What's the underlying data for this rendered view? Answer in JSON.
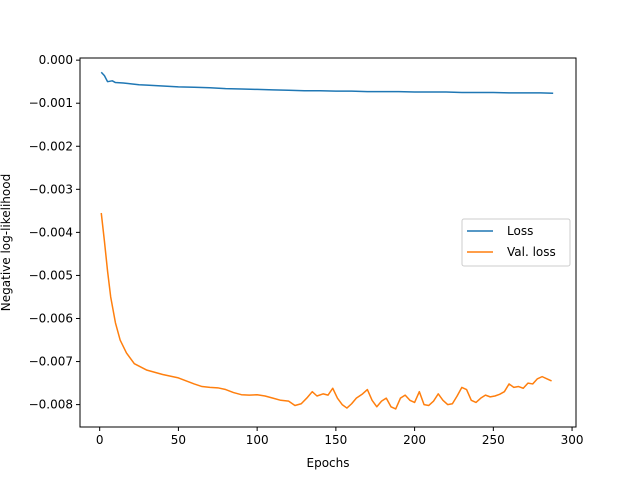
{
  "chart_data": {
    "type": "line",
    "title": "",
    "xlabel": "Epochs",
    "ylabel": "Negative log-likelihood",
    "xlim": [
      -12.5,
      302.5
    ],
    "ylim": [
      -0.00852,
      5e-05
    ],
    "xticks": [
      {
        "value": 0,
        "label": "0"
      },
      {
        "value": 50,
        "label": "50"
      },
      {
        "value": 100,
        "label": "100"
      },
      {
        "value": 150,
        "label": "150"
      },
      {
        "value": 200,
        "label": "200"
      },
      {
        "value": 250,
        "label": "250"
      },
      {
        "value": 300,
        "label": "300"
      }
    ],
    "yticks": [
      {
        "value": 0.0,
        "label": "0.000"
      },
      {
        "value": -0.001,
        "label": "−0.001"
      },
      {
        "value": -0.002,
        "label": "−0.002"
      },
      {
        "value": -0.003,
        "label": "−0.003"
      },
      {
        "value": -0.004,
        "label": "−0.004"
      },
      {
        "value": -0.005,
        "label": "−0.005"
      },
      {
        "value": -0.006,
        "label": "−0.006"
      },
      {
        "value": -0.007,
        "label": "−0.007"
      },
      {
        "value": -0.008,
        "label": "−0.008"
      }
    ],
    "grid": false,
    "legend": "center-right",
    "series": [
      {
        "name": "Loss",
        "color": "#1f77b4",
        "points": [
          [
            1,
            -0.00028
          ],
          [
            3,
            -0.00036
          ],
          [
            5,
            -0.0005
          ],
          [
            8,
            -0.00048
          ],
          [
            10,
            -0.00052
          ],
          [
            15,
            -0.00053
          ],
          [
            20,
            -0.00055
          ],
          [
            25,
            -0.00057
          ],
          [
            30,
            -0.00058
          ],
          [
            40,
            -0.0006
          ],
          [
            50,
            -0.00062
          ],
          [
            60,
            -0.00063
          ],
          [
            70,
            -0.00064
          ],
          [
            80,
            -0.00066
          ],
          [
            90,
            -0.00067
          ],
          [
            100,
            -0.00068
          ],
          [
            110,
            -0.00069
          ],
          [
            120,
            -0.0007
          ],
          [
            130,
            -0.00071
          ],
          [
            140,
            -0.00071
          ],
          [
            150,
            -0.00072
          ],
          [
            160,
            -0.00072
          ],
          [
            170,
            -0.00073
          ],
          [
            180,
            -0.00073
          ],
          [
            190,
            -0.00073
          ],
          [
            200,
            -0.00074
          ],
          [
            210,
            -0.00074
          ],
          [
            220,
            -0.00074
          ],
          [
            230,
            -0.00075
          ],
          [
            240,
            -0.00075
          ],
          [
            250,
            -0.00075
          ],
          [
            260,
            -0.00076
          ],
          [
            270,
            -0.00076
          ],
          [
            280,
            -0.00076
          ],
          [
            288,
            -0.00077
          ]
        ]
      },
      {
        "name": "Val. loss",
        "color": "#ff7f0e",
        "points": [
          [
            1,
            -0.00355
          ],
          [
            3,
            -0.0042
          ],
          [
            5,
            -0.0049
          ],
          [
            7,
            -0.0055
          ],
          [
            10,
            -0.0061
          ],
          [
            13,
            -0.0065
          ],
          [
            17,
            -0.0068
          ],
          [
            22,
            -0.00705
          ],
          [
            30,
            -0.0072
          ],
          [
            40,
            -0.0073
          ],
          [
            50,
            -0.00738
          ],
          [
            55,
            -0.00745
          ],
          [
            60,
            -0.00752
          ],
          [
            65,
            -0.00758
          ],
          [
            70,
            -0.0076
          ],
          [
            75,
            -0.00761
          ],
          [
            80,
            -0.00765
          ],
          [
            85,
            -0.00772
          ],
          [
            90,
            -0.00777
          ],
          [
            95,
            -0.00778
          ],
          [
            100,
            -0.00777
          ],
          [
            105,
            -0.0078
          ],
          [
            110,
            -0.00785
          ],
          [
            115,
            -0.0079
          ],
          [
            120,
            -0.00792
          ],
          [
            124,
            -0.00802
          ],
          [
            128,
            -0.00798
          ],
          [
            132,
            -0.00783
          ],
          [
            135,
            -0.0077
          ],
          [
            138,
            -0.0078
          ],
          [
            142,
            -0.00775
          ],
          [
            145,
            -0.00778
          ],
          [
            148,
            -0.00762
          ],
          [
            151,
            -0.00785
          ],
          [
            154,
            -0.008
          ],
          [
            157,
            -0.00808
          ],
          [
            160,
            -0.00798
          ],
          [
            163,
            -0.00785
          ],
          [
            167,
            -0.00775
          ],
          [
            170,
            -0.00765
          ],
          [
            173,
            -0.0079
          ],
          [
            176,
            -0.00805
          ],
          [
            179,
            -0.00792
          ],
          [
            182,
            -0.00785
          ],
          [
            185,
            -0.00805
          ],
          [
            188,
            -0.0081
          ],
          [
            191,
            -0.00785
          ],
          [
            194,
            -0.00778
          ],
          [
            197,
            -0.0079
          ],
          [
            200,
            -0.00795
          ],
          [
            203,
            -0.0077
          ],
          [
            206,
            -0.008
          ],
          [
            209,
            -0.00802
          ],
          [
            212,
            -0.00792
          ],
          [
            215,
            -0.00775
          ],
          [
            218,
            -0.0079
          ],
          [
            221,
            -0.008
          ],
          [
            224,
            -0.00798
          ],
          [
            227,
            -0.0078
          ],
          [
            230,
            -0.0076
          ],
          [
            233,
            -0.00765
          ],
          [
            236,
            -0.0079
          ],
          [
            239,
            -0.00795
          ],
          [
            242,
            -0.00785
          ],
          [
            245,
            -0.00778
          ],
          [
            248,
            -0.00782
          ],
          [
            251,
            -0.0078
          ],
          [
            254,
            -0.00776
          ],
          [
            257,
            -0.0077
          ],
          [
            260,
            -0.00752
          ],
          [
            263,
            -0.0076
          ],
          [
            266,
            -0.00758
          ],
          [
            269,
            -0.00762
          ],
          [
            272,
            -0.0075
          ],
          [
            275,
            -0.00752
          ],
          [
            278,
            -0.0074
          ],
          [
            281,
            -0.00735
          ],
          [
            284,
            -0.0074
          ],
          [
            287,
            -0.00745
          ]
        ]
      }
    ]
  }
}
